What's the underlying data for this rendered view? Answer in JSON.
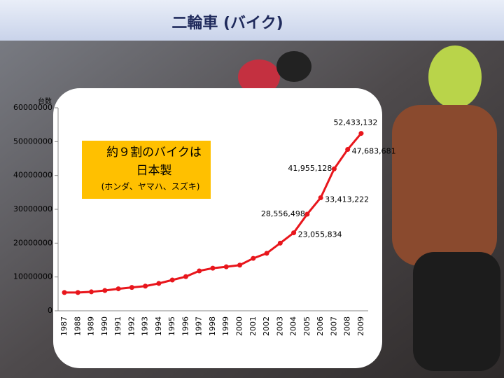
{
  "chart_data": {
    "type": "line",
    "title": "二輪車 (バイク)",
    "y_axis_label": "台数",
    "annotation": {
      "lines": [
        "約９割のバイクは",
        "日本製"
      ],
      "note": "(ホンダ、ヤマハ、スズキ)"
    },
    "categories": [
      "1987",
      "1988",
      "1989",
      "1990",
      "1991",
      "1992",
      "1993",
      "1994",
      "1995",
      "1996",
      "1997",
      "1998",
      "1999",
      "2000",
      "2001",
      "2002",
      "2003",
      "2004",
      "2005",
      "2006",
      "2007",
      "2008",
      "2009"
    ],
    "series": [
      {
        "name": "台数",
        "color": "#e8161c",
        "values": [
          5400000,
          5400000,
          5600000,
          6000000,
          6500000,
          6900000,
          7300000,
          8100000,
          9100000,
          10100000,
          11800000,
          12600000,
          13000000,
          13500000,
          15500000,
          17000000,
          20000000,
          23055834,
          28556498,
          33413222,
          41955128,
          47683681,
          52433132
        ],
        "value_labels": [
          null,
          null,
          null,
          null,
          null,
          null,
          null,
          null,
          null,
          null,
          null,
          null,
          null,
          null,
          null,
          null,
          null,
          "23,055,834",
          "28,556,498",
          "33,413,222",
          "41,955,128",
          "47,683,681",
          "52,433,132"
        ]
      }
    ],
    "ylim": [
      0,
      60000000
    ],
    "yticks": [
      0,
      10000000,
      20000000,
      30000000,
      40000000,
      50000000,
      60000000
    ]
  }
}
